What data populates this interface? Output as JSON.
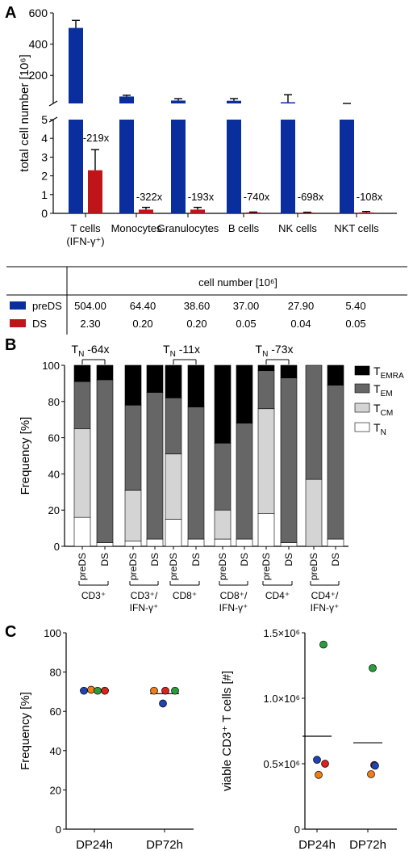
{
  "colors": {
    "preDS": "#0a2e9e",
    "DS": "#c0141b",
    "TEMRA": "#000000",
    "TEM": "#666666",
    "TCM": "#d4d4d4",
    "TN": "#ffffff",
    "green": "#2a9d3b",
    "orange": "#f07d16",
    "red": "#d9231f",
    "blue": "#1f44b0"
  },
  "panel_labels": {
    "a": "A",
    "b": "B",
    "c": "C"
  },
  "chart_data": [
    {
      "type": "bar",
      "title": "",
      "ylabel": "total cell number [10⁶]",
      "categories": [
        "T cells (IFN-γ⁺)",
        "Monocytes",
        "Granulocytes",
        "B cells",
        "NK cells",
        "NKT cells"
      ],
      "category_lines": [
        [
          "T cells",
          "(IFN-γ⁺)"
        ],
        [
          "Monocytes"
        ],
        [
          "Granulocytes"
        ],
        [
          "B cells"
        ],
        [
          "NK cells"
        ],
        [
          "NKT cells"
        ]
      ],
      "series": [
        {
          "name": "preDS",
          "values": [
            504.0,
            64.4,
            38.6,
            37.0,
            27.9,
            5.4
          ],
          "err": [
            48,
            8,
            12,
            14,
            48,
            0
          ]
        },
        {
          "name": "DS",
          "values": [
            2.3,
            0.2,
            0.2,
            0.05,
            0.04,
            0.05
          ],
          "err": [
            1.1,
            0.12,
            0.12,
            0.02,
            0.02,
            0.05
          ]
        }
      ],
      "fold_labels": [
        "-219x",
        "-322x",
        "-193x",
        "-740x",
        "-698x",
        "-108x"
      ],
      "y_ticks_upper": [
        200,
        400,
        600
      ],
      "y_ticks_lower": [
        0,
        1,
        2,
        3,
        4,
        5
      ],
      "ylim_upper": [
        20,
        600
      ],
      "ylim_lower": [
        0,
        5
      ],
      "table": {
        "header": "cell number [10⁶]",
        "rows": [
          {
            "name": "preDS",
            "cells": [
              "504.00",
              "64.40",
              "38.60",
              "37.00",
              "27.90",
              "5.40"
            ]
          },
          {
            "name": "DS",
            "cells": [
              "2.30",
              "0.20",
              "0.20",
              "0.05",
              "0.04",
              "0.05"
            ]
          }
        ]
      }
    },
    {
      "type": "bar",
      "stacked": true,
      "ylabel": "Frequency [%]",
      "ylim": [
        0,
        100
      ],
      "y_ticks": [
        0,
        20,
        40,
        60,
        80,
        100
      ],
      "bars": [
        "preDS",
        "DS",
        "preDS",
        "DS",
        "preDS",
        "DS",
        "preDS",
        "DS",
        "preDS",
        "DS",
        "preDS",
        "DS"
      ],
      "groups": [
        [
          "CD3⁺"
        ],
        [
          "CD3⁺/",
          "IFN-γ⁺"
        ],
        [
          "CD8⁺"
        ],
        [
          "CD8⁺/",
          "IFN-γ⁺"
        ],
        [
          "CD4⁺"
        ],
        [
          "CD4⁺/",
          "IFN-γ⁺"
        ]
      ],
      "series": [
        {
          "name": "T_N",
          "label_main": "T",
          "label_sub": "N",
          "values": [
            16,
            2,
            3,
            4,
            15,
            4,
            4,
            4,
            18,
            2,
            0,
            4
          ]
        },
        {
          "name": "T_CM",
          "label_main": "T",
          "label_sub": "CM",
          "values": [
            49,
            0,
            28,
            0,
            36,
            0,
            16,
            0,
            58,
            0,
            37,
            0
          ]
        },
        {
          "name": "T_EM",
          "label_main": "T",
          "label_sub": "EM",
          "values": [
            26,
            90,
            47,
            81,
            31,
            73,
            37,
            64,
            21,
            91,
            63,
            85
          ]
        },
        {
          "name": "T_EMRA",
          "label_main": "T",
          "label_sub": "EMRA",
          "values": [
            9,
            8,
            22,
            15,
            18,
            23,
            43,
            32,
            3,
            7,
            0,
            11
          ]
        }
      ],
      "annotations": [
        {
          "main": "T",
          "sub": "N",
          "text": " -64x",
          "bars": [
            0,
            1
          ]
        },
        {
          "main": "T",
          "sub": "N",
          "text": " -11x",
          "bars": [
            4,
            5
          ]
        },
        {
          "main": "T",
          "sub": "N",
          "text": " -73x",
          "bars": [
            8,
            9
          ]
        }
      ]
    },
    {
      "type": "scatter",
      "ylabel": "Frequency [%]",
      "ylim": [
        0,
        100
      ],
      "y_ticks": [
        0,
        20,
        40,
        60,
        80,
        100
      ],
      "categories": [
        "DP24h",
        "DP72h"
      ],
      "points": [
        {
          "x": "DP24h",
          "y": 70.5,
          "color": "blue"
        },
        {
          "x": "DP24h",
          "y": 71.0,
          "color": "orange"
        },
        {
          "x": "DP24h",
          "y": 70.5,
          "color": "green"
        },
        {
          "x": "DP24h",
          "y": 70.5,
          "color": "red"
        },
        {
          "x": "DP72h",
          "y": 70.5,
          "color": "orange"
        },
        {
          "x": "DP72h",
          "y": 70.5,
          "color": "red"
        },
        {
          "x": "DP72h",
          "y": 70.5,
          "color": "green"
        },
        {
          "x": "DP72h",
          "y": 64.0,
          "color": "blue"
        }
      ],
      "means": [
        {
          "x": "DP24h",
          "y": 70.7
        },
        {
          "x": "DP72h",
          "y": 69.0
        }
      ]
    },
    {
      "type": "scatter",
      "ylabel": "viable CD3⁺ T cells [#]",
      "ylim": [
        0,
        1500000
      ],
      "y_ticks": [
        {
          "value": 0,
          "label": "0"
        },
        {
          "value": 500000,
          "label": "0.5×10⁶"
        },
        {
          "value": 1000000,
          "label": "1.0×10⁶"
        },
        {
          "value": 1500000,
          "label": "1.5×10⁶"
        }
      ],
      "categories": [
        "DP24h",
        "DP72h"
      ],
      "points": [
        {
          "x": "DP24h",
          "y": 1410000,
          "color": "green"
        },
        {
          "x": "DP24h",
          "y": 530000,
          "color": "blue"
        },
        {
          "x": "DP24h",
          "y": 500000,
          "color": "red"
        },
        {
          "x": "DP24h",
          "y": 415000,
          "color": "orange"
        },
        {
          "x": "DP72h",
          "y": 1230000,
          "color": "green"
        },
        {
          "x": "DP72h",
          "y": 490000,
          "color": "red"
        },
        {
          "x": "DP72h",
          "y": 485000,
          "color": "blue"
        },
        {
          "x": "DP72h",
          "y": 420000,
          "color": "orange"
        }
      ],
      "means": [
        {
          "x": "DP24h",
          "y": 710000
        },
        {
          "x": "DP72h",
          "y": 660000
        }
      ]
    }
  ]
}
